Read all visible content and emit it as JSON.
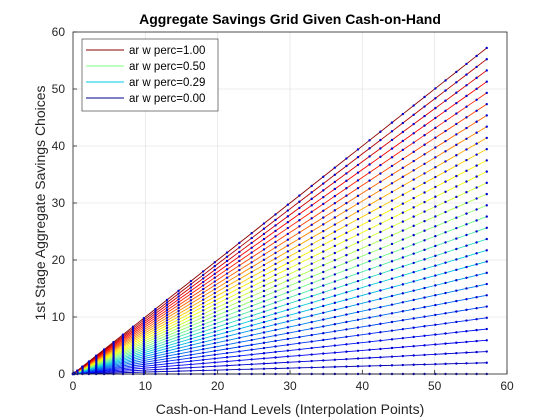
{
  "chart_data": {
    "type": "line",
    "title": "Aggregate Savings Grid Given Cash-on-Hand",
    "xlabel": "Cash-on-Hand Levels (Interpolation Points)",
    "ylabel": "1st Stage Aggregate Savings Choices",
    "xlim": [
      0,
      60
    ],
    "ylim": [
      0,
      60
    ],
    "xticks": [
      0,
      10,
      20,
      30,
      40,
      50,
      60
    ],
    "yticks": [
      0,
      10,
      20,
      30,
      40,
      50,
      60
    ],
    "grid": true,
    "legend_position": "top-left",
    "x_points": [
      0.0,
      0.2,
      0.6,
      1.3,
      2.2,
      3.2,
      4.3,
      5.6,
      6.9,
      8.3,
      9.8,
      11.4,
      13.0,
      14.6,
      16.3,
      18.0,
      19.6,
      21.3,
      23.0,
      24.7,
      26.4,
      28.0,
      29.7,
      31.3,
      33.0,
      34.6,
      36.2,
      37.8,
      39.4,
      41.0,
      42.5,
      44.1,
      45.6,
      47.1,
      48.6,
      50.1,
      51.5,
      53.0,
      54.4,
      55.8,
      57.2
    ],
    "x_max": 57.2,
    "num_series": 30,
    "top_end_value": 57.2,
    "series": [
      {
        "name": "ar w perc=1.00",
        "color": "#8b0000",
        "end_value": 57.2
      },
      {
        "name": "ar w perc=0.50",
        "color": "#7fff7f",
        "end_value": 28.6
      },
      {
        "name": "ar w perc=0.29",
        "color": "#00c8e6",
        "end_value": 16.6
      },
      {
        "name": "ar w perc=0.00",
        "color": "#00008f",
        "end_value": 0.0
      }
    ]
  }
}
